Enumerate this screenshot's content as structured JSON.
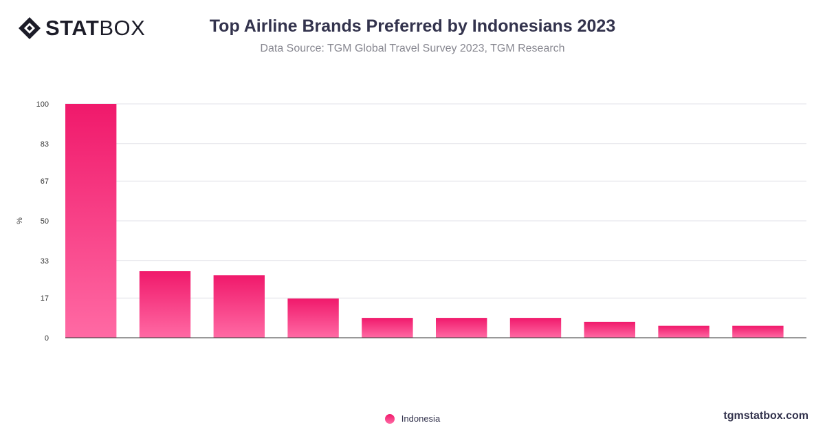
{
  "brand": {
    "logo_bold": "STAT",
    "logo_light": "BOX",
    "watermark": "tgmstatbox.com"
  },
  "header": {
    "title": "Top Airline Brands Preferred by Indonesians 2023",
    "subtitle": "Data Source: TGM Global Travel Survey 2023, TGM Research"
  },
  "chart_data": {
    "type": "bar",
    "title": "Top Airline Brands Preferred by Indonesians 2023",
    "xlabel": "",
    "ylabel": "%",
    "ylim": [
      0,
      100
    ],
    "yticks": [
      0,
      17,
      33,
      50,
      67,
      83,
      100
    ],
    "grid": true,
    "legend_position": "bottom-center",
    "series": [
      {
        "name": "Indonesia",
        "values": [
          100,
          28.5,
          26.7,
          16.8,
          8.5,
          8.5,
          8.5,
          6.8,
          5.1,
          5.1
        ]
      }
    ],
    "colors": {
      "bar_top": "#f0196b",
      "bar_bottom": "#ff6aa4",
      "grid": "#e2e2e8",
      "axis": "#333333"
    }
  }
}
